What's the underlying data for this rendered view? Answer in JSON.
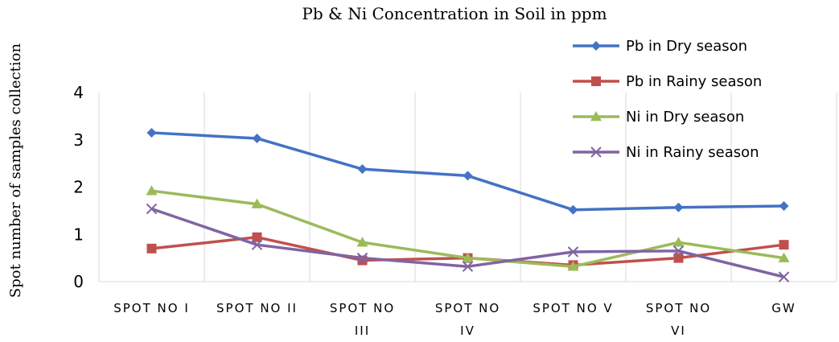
{
  "chart_data": {
    "type": "line",
    "title": "Pb & Ni Concentration in Soil in ppm",
    "xlabel": "",
    "ylabel": "Spot number of samples collection",
    "ylim": [
      0,
      4
    ],
    "yticks": [
      "0",
      "1",
      "2",
      "3",
      "4"
    ],
    "grid": "vertical",
    "legend_position": "top-right",
    "categories": [
      [
        "SPOT NO I"
      ],
      [
        "SPOT NO II"
      ],
      [
        "SPOT NO",
        "III"
      ],
      [
        "SPOT NO",
        "IV"
      ],
      [
        "SPOT NO V"
      ],
      [
        "SPOT NO",
        "VI"
      ],
      [
        "GW"
      ]
    ],
    "series": [
      {
        "name": "Pb in Dry season",
        "color": "#4472C4",
        "marker": "diamond",
        "values": [
          3.15,
          3.03,
          2.38,
          2.24,
          1.52,
          1.57,
          1.6
        ]
      },
      {
        "name": "Pb in Rainy season",
        "color": "#C0504D",
        "marker": "square",
        "values": [
          0.7,
          0.94,
          0.45,
          0.5,
          0.35,
          0.5,
          0.78
        ]
      },
      {
        "name": "Ni in Dry season",
        "color": "#9BBB59",
        "marker": "triangle",
        "values": [
          1.92,
          1.64,
          0.83,
          0.5,
          0.32,
          0.83,
          0.5
        ]
      },
      {
        "name": "Ni in Rainy season",
        "color": "#8064A2",
        "marker": "x",
        "values": [
          1.54,
          0.78,
          0.5,
          0.32,
          0.63,
          0.65,
          0.1
        ]
      }
    ]
  }
}
